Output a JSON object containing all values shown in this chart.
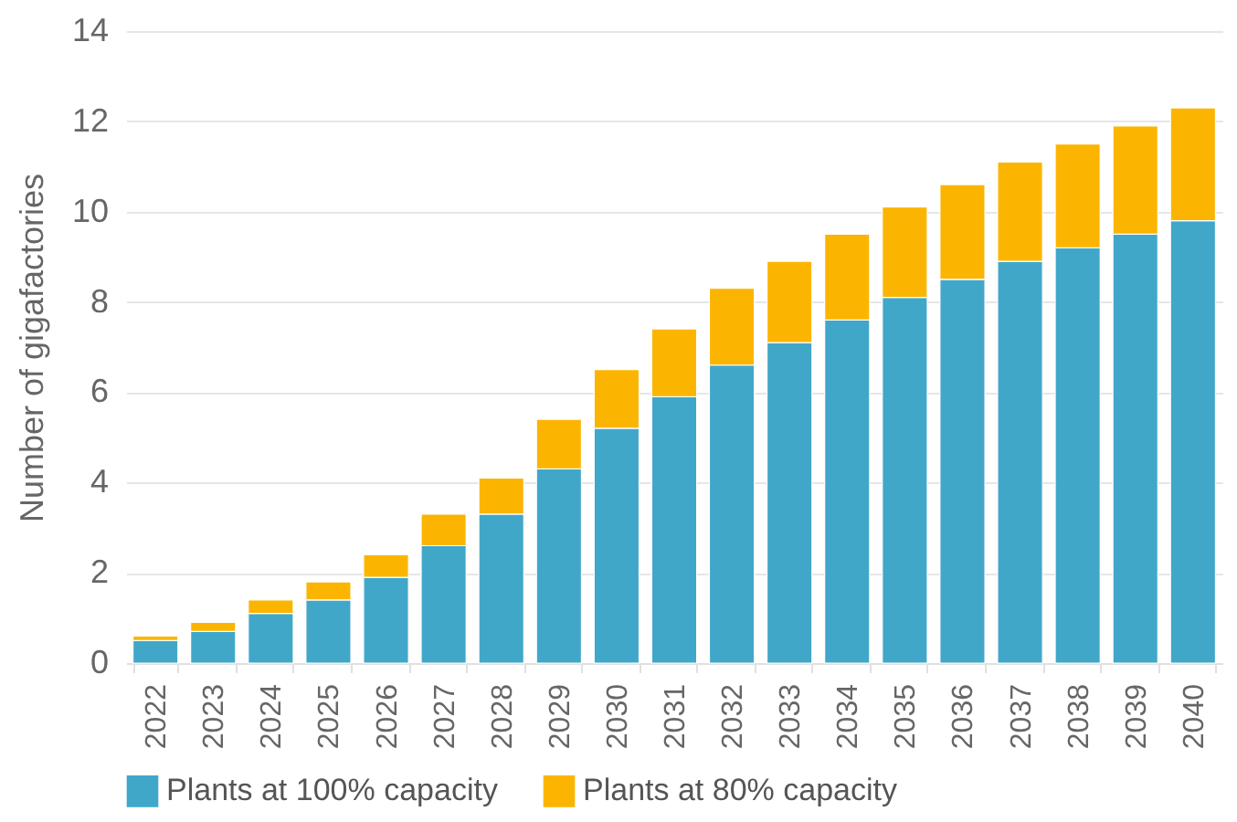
{
  "chart_data": {
    "type": "bar",
    "stacked": true,
    "ylabel": "Number of gigafactories",
    "categories": [
      "2022",
      "2023",
      "2024",
      "2025",
      "2026",
      "2027",
      "2028",
      "2029",
      "2030",
      "2031",
      "2032",
      "2033",
      "2034",
      "2035",
      "2036",
      "2037",
      "2038",
      "2039",
      "2040"
    ],
    "series": [
      {
        "name": "Plants at 100% capacity",
        "color": "#41a7c9",
        "values": [
          0.5,
          0.7,
          1.1,
          1.4,
          1.9,
          2.6,
          3.3,
          4.3,
          5.2,
          5.9,
          6.6,
          7.1,
          7.6,
          8.1,
          8.5,
          8.9,
          9.2,
          9.5,
          9.8
        ]
      },
      {
        "name": "Plants at 80% capacity",
        "color": "#fbb500",
        "values": [
          0.1,
          0.2,
          0.3,
          0.4,
          0.5,
          0.7,
          0.8,
          1.1,
          1.3,
          1.5,
          1.7,
          1.8,
          1.9,
          2.0,
          2.1,
          2.2,
          2.3,
          2.4,
          2.5
        ]
      }
    ],
    "ylim": [
      0,
      14
    ],
    "yticks": [
      0,
      2,
      4,
      6,
      8,
      10,
      12,
      14
    ],
    "grid": "y",
    "legend": "bottom"
  }
}
